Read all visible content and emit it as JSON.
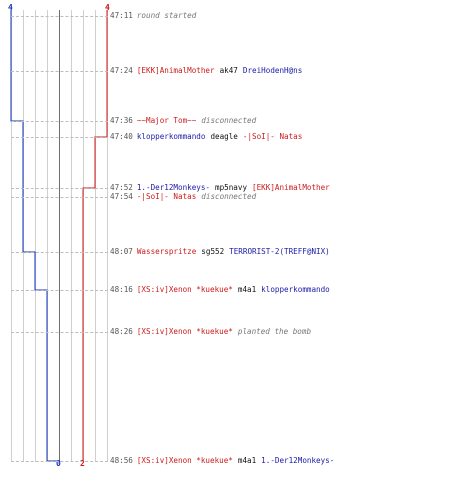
{
  "axis": {
    "left_top_label": "4",
    "right_top_label": "4",
    "bottom_blue_label": "0",
    "bottom_red_label": "2"
  },
  "colors": {
    "blue_team": "#1030c0",
    "red_team": "#cc1414",
    "neutral_text": "#777777",
    "grid": "#cfcfcf"
  },
  "events": [
    {
      "time": "47:11",
      "parts": [
        {
          "text": "round started",
          "style": "gray"
        }
      ]
    },
    {
      "time": "47:24",
      "parts": [
        {
          "text": "[EKK]AnimalMother",
          "style": "red"
        },
        {
          "text": "ak47",
          "style": "black"
        },
        {
          "text": "DreiHodenH@ns",
          "style": "blue"
        }
      ]
    },
    {
      "time": "47:36",
      "parts": [
        {
          "text": "~~Major Tom~~",
          "style": "red"
        },
        {
          "text": "disconnected",
          "style": "gray"
        }
      ]
    },
    {
      "time": "47:40",
      "parts": [
        {
          "text": "klopperkommando",
          "style": "blue"
        },
        {
          "text": "deagle",
          "style": "black"
        },
        {
          "text": "-|SoI|- Natas",
          "style": "red"
        }
      ]
    },
    {
      "time": "47:52",
      "parts": [
        {
          "text": "1.-Der12Monkeys-",
          "style": "blue"
        },
        {
          "text": "mp5navy",
          "style": "black"
        },
        {
          "text": "[EKK]AnimalMother",
          "style": "red"
        }
      ]
    },
    {
      "time": "47:54",
      "parts": [
        {
          "text": "-|SoI|- Natas",
          "style": "red"
        },
        {
          "text": "disconnected",
          "style": "gray"
        }
      ]
    },
    {
      "time": "48:07",
      "parts": [
        {
          "text": "Wasserspritze",
          "style": "red"
        },
        {
          "text": "sg552",
          "style": "black"
        },
        {
          "text": "TERRORIST-2(TREFF@NIX)",
          "style": "blue"
        }
      ]
    },
    {
      "time": "48:16",
      "parts": [
        {
          "text": "[XS:iv]Xenon *kuekue*",
          "style": "red"
        },
        {
          "text": "m4a1",
          "style": "black"
        },
        {
          "text": "klopperkommando",
          "style": "blue"
        }
      ]
    },
    {
      "time": "48:26",
      "parts": [
        {
          "text": "[XS:iv]Xenon *kuekue*",
          "style": "red"
        },
        {
          "text": "planted the bomb",
          "style": "gray"
        }
      ]
    },
    {
      "time": "48:56",
      "parts": [
        {
          "text": "[XS:iv]Xenon *kuekue*",
          "style": "red"
        },
        {
          "text": "m4a1",
          "style": "black"
        },
        {
          "text": "1.-Der12Monkeys-",
          "style": "blue"
        }
      ]
    }
  ],
  "blue_alive": [
    4,
    4,
    3,
    3,
    3,
    3,
    2,
    1,
    1,
    0
  ],
  "red_alive": [
    4,
    4,
    4,
    3,
    2,
    2,
    2,
    2,
    2,
    2
  ]
}
